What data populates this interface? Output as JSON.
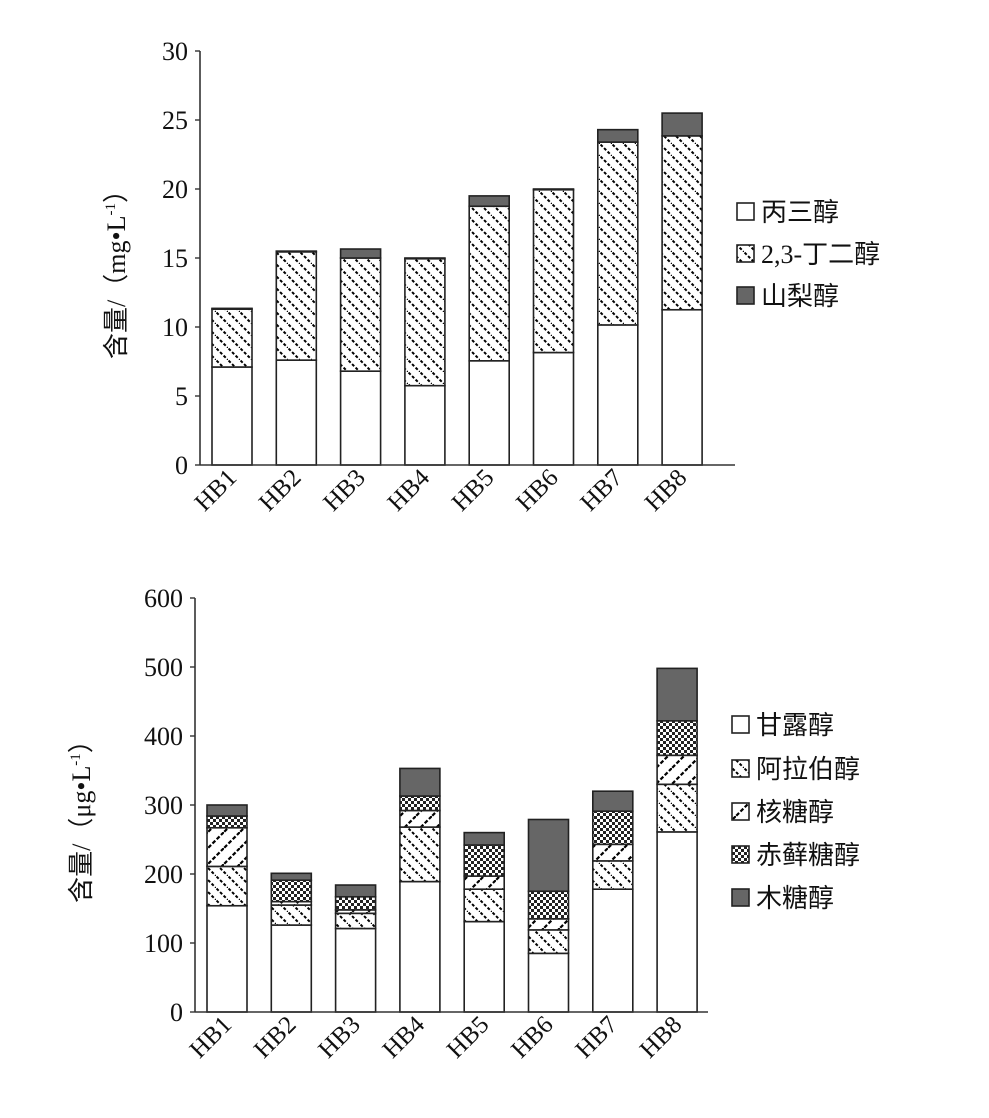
{
  "chart_data": [
    {
      "type": "bar",
      "stacked": true,
      "title": "",
      "xlabel": "",
      "ylabel": "含量/（mg•L-1）",
      "ylabel_parts": {
        "main": "含量/（mg•L",
        "sup": "-1",
        "end": "）"
      },
      "ylim": [
        0,
        30
      ],
      "yticks": [
        0,
        5,
        10,
        15,
        20,
        25,
        30
      ],
      "legend_position": "right",
      "categories": [
        "HB1",
        "HB2",
        "HB3",
        "HB4",
        "HB5",
        "HB6",
        "HB7",
        "HB8"
      ],
      "series": [
        {
          "name": "丙三醇",
          "pattern": "solid-white",
          "values": [
            7.1,
            7.6,
            6.8,
            5.75,
            7.55,
            8.15,
            10.15,
            11.25
          ]
        },
        {
          "name": "2,3-丁二醇",
          "pattern": "back-hatch",
          "values": [
            4.2,
            7.85,
            8.2,
            9.2,
            11.2,
            11.8,
            13.25,
            12.6
          ]
        },
        {
          "name": "山梨醇",
          "pattern": "solid-dark",
          "values": [
            0.05,
            0.05,
            0.65,
            0.05,
            0.75,
            0.05,
            0.9,
            1.65
          ]
        }
      ]
    },
    {
      "type": "bar",
      "stacked": true,
      "title": "",
      "xlabel": "",
      "ylabel": "含量/（μg•L-1）",
      "ylabel_parts": {
        "main": "含量/（μg•L",
        "sup": "-1",
        "end": "）"
      },
      "ylim": [
        0,
        600
      ],
      "yticks": [
        0,
        100,
        200,
        300,
        400,
        500,
        600
      ],
      "legend_position": "right",
      "categories": [
        "HB1",
        "HB2",
        "HB3",
        "HB4",
        "HB5",
        "HB6",
        "HB7",
        "HB8"
      ],
      "series": [
        {
          "name": "甘露醇",
          "pattern": "solid-white",
          "values": [
            154,
            126,
            121,
            189,
            131,
            85,
            178,
            261
          ]
        },
        {
          "name": "阿拉伯醇",
          "pattern": "back-hatch",
          "values": [
            57,
            29,
            22,
            79,
            47,
            34,
            41,
            69
          ]
        },
        {
          "name": "核糖醇",
          "pattern": "forward-hatch",
          "values": [
            56,
            5,
            5,
            24,
            19,
            16,
            24,
            42
          ]
        },
        {
          "name": "赤藓糖醇",
          "pattern": "checker",
          "values": [
            17,
            31,
            19,
            21,
            45,
            40,
            48,
            50
          ]
        },
        {
          "name": "木糖醇",
          "pattern": "solid-dark",
          "values": [
            16,
            10,
            17,
            40,
            18,
            104,
            29,
            76
          ]
        }
      ]
    }
  ],
  "colors": {
    "dark": "#666666",
    "axis": "#333333",
    "background": "#ffffff"
  }
}
